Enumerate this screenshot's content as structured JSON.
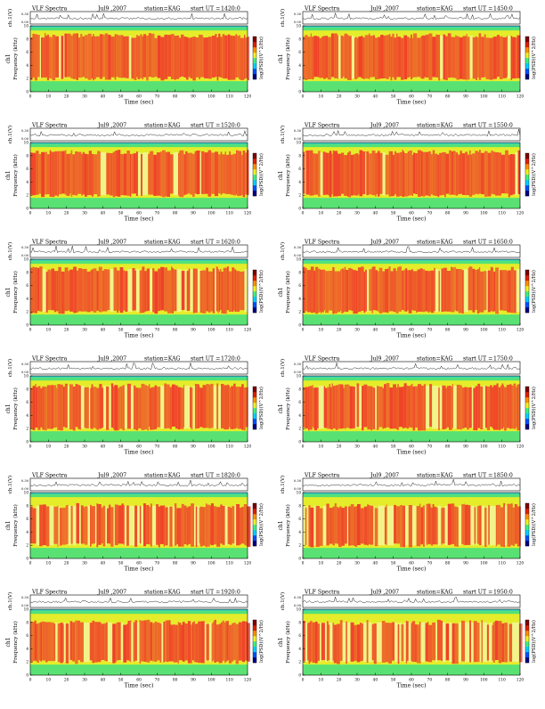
{
  "page": {
    "header": {
      "title": "VLF Spectra",
      "date": "Jul9 ,2007",
      "station": "station=KAG",
      "start_label": "start  UT ="
    },
    "common_labels": {
      "channel": "ch1",
      "wave_axis": "ch.1(V)",
      "freq_axis": "Frequency  (kHz)",
      "time_axis": "Time  (sec)",
      "colorbar": "log(PSD)(V^2/Hz)"
    },
    "colors": {
      "spec_base": "#e5ec2a",
      "spec_burst": "#f0402a",
      "spec_low": "#41e080",
      "spec_top": "#28c8ff",
      "colorbar": [
        "#000080",
        "#0050ff",
        "#00d0ff",
        "#40f080",
        "#f0f020",
        "#ff9000",
        "#e02000",
        "#800000"
      ]
    }
  },
  "chart_data": [
    {
      "type": "heatmap",
      "title": "VLF Spectra",
      "date": "Jul9 ,2007",
      "station": "station=KAG",
      "start_ut": "1420:0",
      "xlabel": "Time  (sec)",
      "ylabel": "Frequency  (kHz)",
      "wave_ylabel": "ch.1(V)",
      "channel": "ch1",
      "x_ticks": [
        "0",
        "10",
        "20",
        "30",
        "40",
        "50",
        "60",
        "70",
        "80",
        "90",
        "100",
        "110",
        "120"
      ],
      "y_ticks": [
        "0",
        "2",
        "4",
        "6",
        "8",
        "10"
      ],
      "wave_ticks": [
        "0.00",
        "0.30"
      ],
      "colorbar_label": "log(PSD)(V^2/Hz)",
      "xlim": [
        0,
        120
      ],
      "ylim": [
        0,
        10
      ],
      "burst_band_khz": [
        2.0,
        8.5
      ],
      "burst_level": 0.95
    },
    {
      "type": "heatmap",
      "title": "VLF Spectra",
      "date": "Jul9 ,2007",
      "station": "station=KAG",
      "start_ut": "1450:0",
      "xlabel": "Time  (sec)",
      "ylabel": "Frequency  (kHz)",
      "wave_ylabel": "ch.1(V)",
      "channel": "ch1",
      "x_ticks": [
        "0",
        "10",
        "20",
        "30",
        "40",
        "50",
        "60",
        "70",
        "80",
        "90",
        "100",
        "110",
        "120"
      ],
      "y_ticks": [
        "0",
        "2",
        "4",
        "6",
        "8",
        "10"
      ],
      "wave_ticks": [
        "0.00",
        "0.30"
      ],
      "colorbar_label": "log(PSD)(V^2/Hz)",
      "xlim": [
        0,
        120
      ],
      "ylim": [
        0,
        10
      ],
      "burst_band_khz": [
        2.0,
        8.5
      ],
      "burst_level": 0.95
    },
    {
      "type": "heatmap",
      "title": "VLF Spectra",
      "date": "Jul9 ,2007",
      "station": "station=KAG",
      "start_ut": "1520:0",
      "xlabel": "Time  (sec)",
      "ylabel": "Frequency  (kHz)",
      "wave_ylabel": "ch.1(V)",
      "channel": "ch1",
      "x_ticks": [
        "0",
        "10",
        "20",
        "30",
        "40",
        "50",
        "60",
        "70",
        "80",
        "90",
        "100",
        "110",
        "120"
      ],
      "y_ticks": [
        "0",
        "2",
        "4",
        "6",
        "8",
        "10"
      ],
      "wave_ticks": [
        "0.00",
        "0.30"
      ],
      "colorbar_label": "log(PSD)(V^2/Hz)",
      "xlim": [
        0,
        120
      ],
      "ylim": [
        0,
        10
      ],
      "burst_band_khz": [
        2.0,
        8.5
      ],
      "burst_level": 0.9
    },
    {
      "type": "heatmap",
      "title": "VLF Spectra",
      "date": "Jul9 ,2007",
      "station": "station=KAG",
      "start_ut": "1550:0",
      "xlabel": "Time  (sec)",
      "ylabel": "Frequency  (kHz)",
      "wave_ylabel": "ch.1(V)",
      "channel": "ch1",
      "x_ticks": [
        "0",
        "10",
        "20",
        "30",
        "40",
        "50",
        "60",
        "70",
        "80",
        "90",
        "100",
        "110",
        "120"
      ],
      "y_ticks": [
        "0",
        "2",
        "4",
        "6",
        "8",
        "10"
      ],
      "wave_ticks": [
        "0.00",
        "0.30"
      ],
      "colorbar_label": "log(PSD)(V^2/Hz)",
      "xlim": [
        0,
        120
      ],
      "ylim": [
        0,
        10
      ],
      "burst_band_khz": [
        2.0,
        8.5
      ],
      "burst_level": 0.9
    },
    {
      "type": "heatmap",
      "title": "VLF Spectra",
      "date": "Jul9 ,2007",
      "station": "station=KAG",
      "start_ut": "1620:0",
      "xlabel": "Time  (sec)",
      "ylabel": "Frequency  (kHz)",
      "wave_ylabel": "ch.1(V)",
      "channel": "ch1",
      "x_ticks": [
        "0",
        "10",
        "20",
        "30",
        "40",
        "50",
        "60",
        "70",
        "80",
        "90",
        "100",
        "110",
        "120"
      ],
      "y_ticks": [
        "0",
        "2",
        "4",
        "6",
        "8",
        "10"
      ],
      "wave_ticks": [
        "0.00",
        "0.30"
      ],
      "colorbar_label": "log(PSD)(V^2/Hz)",
      "xlim": [
        0,
        120
      ],
      "ylim": [
        0,
        10
      ],
      "burst_band_khz": [
        2.0,
        8.5
      ],
      "burst_level": 0.9
    },
    {
      "type": "heatmap",
      "title": "VLF Spectra",
      "date": "Jul9 ,2007",
      "station": "station=KAG",
      "start_ut": "1650:0",
      "xlabel": "Time  (sec)",
      "ylabel": "Frequency  (kHz)",
      "wave_ylabel": "ch.1(V)",
      "channel": "ch1",
      "x_ticks": [
        "0",
        "10",
        "20",
        "30",
        "40",
        "50",
        "60",
        "70",
        "80",
        "90",
        "100",
        "110",
        "120"
      ],
      "y_ticks": [
        "0",
        "2",
        "4",
        "6",
        "8",
        "10"
      ],
      "wave_ticks": [
        "0.00",
        "0.30"
      ],
      "colorbar_label": "log(PSD)(V^2/Hz)",
      "xlim": [
        0,
        120
      ],
      "ylim": [
        0,
        10
      ],
      "burst_band_khz": [
        2.0,
        8.5
      ],
      "burst_level": 0.9
    },
    {
      "type": "heatmap",
      "title": "VLF Spectra",
      "date": "Jul9 ,2007",
      "station": "station=KAG",
      "start_ut": "1720:0",
      "xlabel": "Time  (sec)",
      "ylabel": "Frequency  (kHz)",
      "wave_ylabel": "ch.1(V)",
      "channel": "ch1",
      "x_ticks": [
        "0",
        "10",
        "20",
        "30",
        "40",
        "50",
        "60",
        "70",
        "80",
        "90",
        "100",
        "110",
        "120"
      ],
      "y_ticks": [
        "0",
        "2",
        "4",
        "6",
        "8",
        "10"
      ],
      "wave_ticks": [
        "0.00",
        "0.30"
      ],
      "colorbar_label": "log(PSD)(V^2/Hz)",
      "xlim": [
        0,
        120
      ],
      "ylim": [
        0,
        10
      ],
      "burst_band_khz": [
        2.0,
        8.5
      ],
      "burst_level": 0.85
    },
    {
      "type": "heatmap",
      "title": "VLF Spectra",
      "date": "Jul9 ,2007",
      "station": "station=KAG",
      "start_ut": "1750:0",
      "xlabel": "Time  (sec)",
      "ylabel": "Frequency  (kHz)",
      "wave_ylabel": "ch.1(V)",
      "channel": "ch1",
      "x_ticks": [
        "0",
        "10",
        "20",
        "30",
        "40",
        "50",
        "60",
        "70",
        "80",
        "90",
        "100",
        "110",
        "120"
      ],
      "y_ticks": [
        "0",
        "2",
        "4",
        "6",
        "8",
        "10"
      ],
      "wave_ticks": [
        "0.00",
        "0.30"
      ],
      "colorbar_label": "log(PSD)(V^2/Hz)",
      "xlim": [
        0,
        120
      ],
      "ylim": [
        0,
        10
      ],
      "burst_band_khz": [
        2.0,
        8.5
      ],
      "burst_level": 0.85
    },
    {
      "type": "heatmap",
      "title": "VLF Spectra",
      "date": "Jul9 ,2007",
      "station": "station=KAG",
      "start_ut": "1820:0",
      "xlabel": "Time  (sec)",
      "ylabel": "Frequency  (kHz)",
      "wave_ylabel": "ch.1(V)",
      "channel": "ch1",
      "x_ticks": [
        "0",
        "10",
        "20",
        "30",
        "40",
        "50",
        "60",
        "70",
        "80",
        "90",
        "100",
        "110",
        "120"
      ],
      "y_ticks": [
        "0",
        "2",
        "4",
        "6",
        "8",
        "10"
      ],
      "wave_ticks": [
        "0.00",
        "0.30"
      ],
      "colorbar_label": "log(PSD)(V^2/Hz)",
      "xlim": [
        0,
        120
      ],
      "ylim": [
        0,
        10
      ],
      "burst_band_khz": [
        2.0,
        8.0
      ],
      "burst_level": 0.8
    },
    {
      "type": "heatmap",
      "title": "VLF Spectra",
      "date": "Jul9 ,2007",
      "station": "station=KAG",
      "start_ut": "1850:0",
      "xlabel": "Time  (sec)",
      "ylabel": "Frequency  (kHz)",
      "wave_ylabel": "ch.1(V)",
      "channel": "ch1",
      "x_ticks": [
        "0",
        "10",
        "20",
        "30",
        "40",
        "50",
        "60",
        "70",
        "80",
        "90",
        "100",
        "110",
        "120"
      ],
      "y_ticks": [
        "0",
        "2",
        "4",
        "6",
        "8",
        "10"
      ],
      "wave_ticks": [
        "0.00",
        "0.30"
      ],
      "colorbar_label": "log(PSD)(V^2/Hz)",
      "xlim": [
        0,
        120
      ],
      "ylim": [
        0,
        10
      ],
      "burst_band_khz": [
        2.0,
        8.0
      ],
      "burst_level": 0.75
    },
    {
      "type": "heatmap",
      "title": "VLF Spectra",
      "date": "Jul9 ,2007",
      "station": "station=KAG",
      "start_ut": "1920:0",
      "xlabel": "Time  (sec)",
      "ylabel": "Frequency  (kHz)",
      "wave_ylabel": "ch.1(V)",
      "channel": "ch1",
      "x_ticks": [
        "0",
        "10",
        "20",
        "30",
        "40",
        "50",
        "60",
        "70",
        "80",
        "90",
        "100",
        "110",
        "120"
      ],
      "y_ticks": [
        "0",
        "2",
        "4",
        "6",
        "8",
        "10"
      ],
      "wave_ticks": [
        "0.00",
        "0.30"
      ],
      "colorbar_label": "log(PSD)(V^2/Hz)",
      "xlim": [
        0,
        120
      ],
      "ylim": [
        0,
        10
      ],
      "burst_band_khz": [
        2.0,
        8.0
      ],
      "burst_level": 0.8
    },
    {
      "type": "heatmap",
      "title": "VLF Spectra",
      "date": "Jul9 ,2007",
      "station": "station=KAG",
      "start_ut": "1950:0",
      "xlabel": "Time  (sec)",
      "ylabel": "Frequency  (kHz)",
      "wave_ylabel": "ch.1(V)",
      "channel": "ch1",
      "x_ticks": [
        "0",
        "10",
        "20",
        "30",
        "40",
        "50",
        "60",
        "70",
        "80",
        "90",
        "100",
        "110",
        "120"
      ],
      "y_ticks": [
        "0",
        "2",
        "4",
        "6",
        "8",
        "10"
      ],
      "wave_ticks": [
        "0.00",
        "0.30"
      ],
      "colorbar_label": "log(PSD)(V^2/Hz)",
      "xlim": [
        0,
        120
      ],
      "ylim": [
        0,
        10
      ],
      "burst_band_khz": [
        2.0,
        8.0
      ],
      "burst_level": 0.6
    }
  ]
}
